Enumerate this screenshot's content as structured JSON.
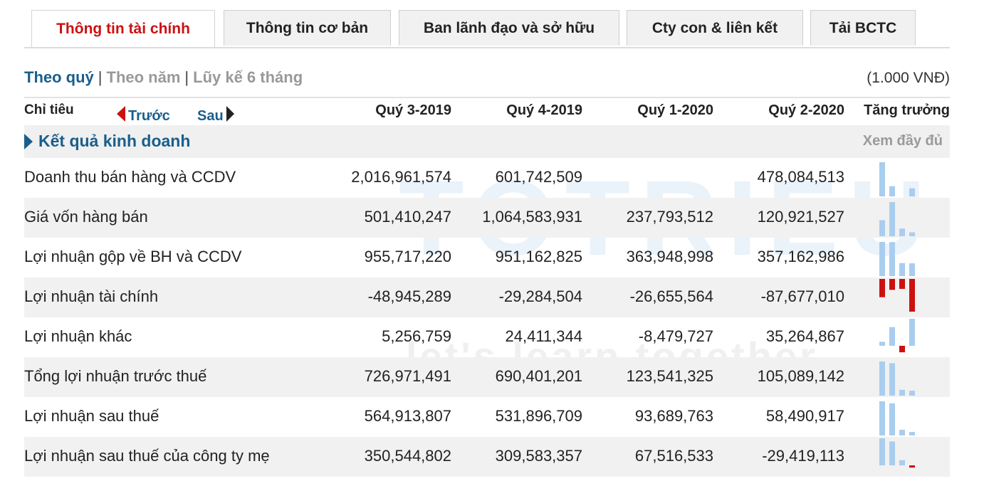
{
  "tabs": [
    {
      "label": "Thông tin tài chính",
      "active": true
    },
    {
      "label": "Thông tin cơ bản",
      "active": false
    },
    {
      "label": "Ban lãnh đạo và sở hữu",
      "active": false
    },
    {
      "label": "Cty con & liên kết",
      "active": false
    },
    {
      "label": "Tải BCTC",
      "active": false
    }
  ],
  "period": {
    "quarterly": "Theo quý",
    "yearly": "Theo năm",
    "cumulative": "Lũy kế 6 tháng",
    "sep": "|"
  },
  "unit": "(1.000 VNĐ)",
  "header": {
    "indicator": "Chỉ tiêu",
    "prev": "Trước",
    "next": "Sau",
    "growth": "Tăng trưởng",
    "quarters": [
      "Quý 3-2019",
      "Quý 4-2019",
      "Quý 1-2020",
      "Quý 2-2020"
    ]
  },
  "section": {
    "title": "Kết quả kinh doanh",
    "more": "Xem đầy đủ"
  },
  "watermark": {
    "text": "TOTRIEU",
    "slogan": "let's learn together"
  },
  "colors": {
    "accent_blue": "#1a5e8c",
    "active_red": "#cc1111",
    "bar_positive": "#a9cdee",
    "bar_negative": "#cc1111"
  },
  "rows": [
    {
      "label": "Doanh thu bán hàng và CCDV",
      "display": [
        "2,016,961,574",
        "601,742,509",
        "",
        "478,084,513"
      ],
      "values": [
        2016961574,
        601742509,
        0,
        478084513
      ]
    },
    {
      "label": "Giá vốn hàng bán",
      "display": [
        "501,410,247",
        "1,064,583,931",
        "237,793,512",
        "120,921,527"
      ],
      "values": [
        501410247,
        1064583931,
        237793512,
        120921527
      ]
    },
    {
      "label": "Lợi nhuận gộp về BH và CCDV",
      "display": [
        "955,717,220",
        "951,162,825",
        "363,948,998",
        "357,162,986"
      ],
      "values": [
        955717220,
        951162825,
        363948998,
        357162986
      ]
    },
    {
      "label": "Lợi nhuận tài chính",
      "display": [
        "-48,945,289",
        "-29,284,504",
        "-26,655,564",
        "-87,677,010"
      ],
      "values": [
        -48945289,
        -29284504,
        -26655564,
        -87677010
      ]
    },
    {
      "label": "Lợi nhuận khác",
      "display": [
        "5,256,759",
        "24,411,344",
        "-8,479,727",
        "35,264,867"
      ],
      "values": [
        5256759,
        24411344,
        -8479727,
        35264867
      ]
    },
    {
      "label": "Tổng lợi nhuận trước thuế",
      "display": [
        "726,971,491",
        "690,401,201",
        "123,541,325",
        "105,089,142"
      ],
      "values": [
        726971491,
        690401201,
        123541325,
        105089142
      ]
    },
    {
      "label": "Lợi nhuận sau thuế",
      "display": [
        "564,913,807",
        "531,896,709",
        "93,689,763",
        "58,490,917"
      ],
      "values": [
        564913807,
        531896709,
        93689763,
        58490917
      ]
    },
    {
      "label": "Lợi nhuận sau thuế của công ty mẹ",
      "display": [
        "350,544,802",
        "309,583,357",
        "67,516,533",
        "-29,419,113"
      ],
      "values": [
        350544802,
        309583357,
        67516533,
        -29419113
      ]
    }
  ]
}
